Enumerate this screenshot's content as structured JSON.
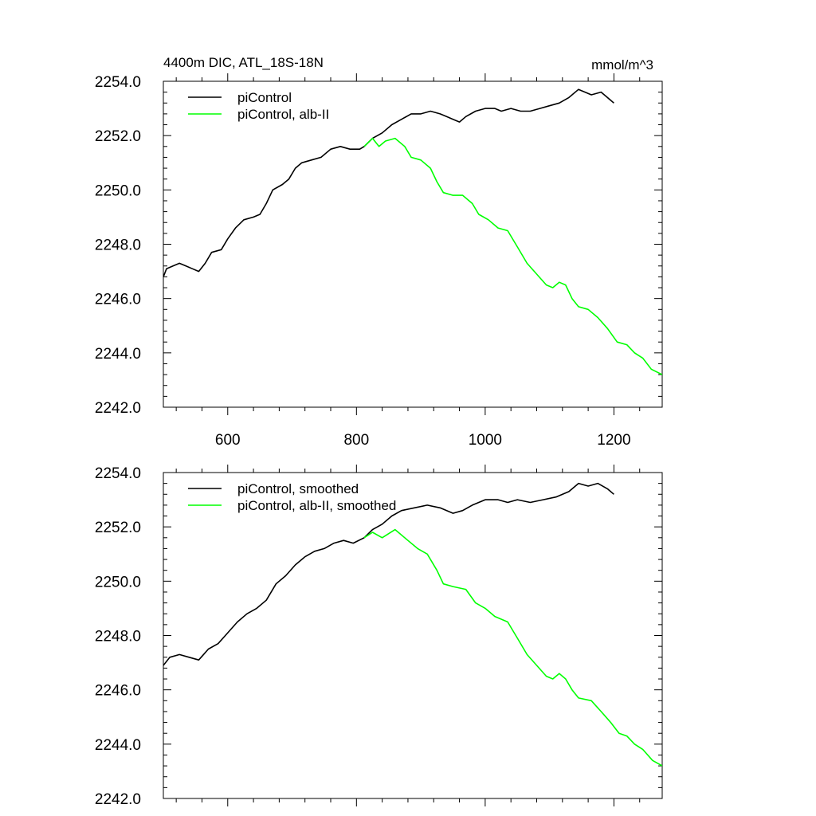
{
  "chart_data": [
    {
      "type": "line",
      "title": "4400m DIC, ATL_18S-18N",
      "units_label": "mmol/m^3",
      "xlim": [
        500,
        1275
      ],
      "ylim": [
        2242.0,
        2254.0
      ],
      "x_ticks": [
        600,
        800,
        1000,
        1200
      ],
      "x_tick_labels": [
        "600",
        "800",
        "1000",
        "1200"
      ],
      "y_ticks": [
        2242.0,
        2244.0,
        2246.0,
        2248.0,
        2250.0,
        2252.0,
        2254.0
      ],
      "y_tick_labels": [
        "2242.0",
        "2244.0",
        "2246.0",
        "2248.0",
        "2250.0",
        "2252.0",
        "2254.0"
      ],
      "legend_position": "top-left",
      "series": [
        {
          "name": "piControl",
          "color": "#000000",
          "points": [
            [
              500,
              2246.8
            ],
            [
              505,
              2247.1
            ],
            [
              515,
              2247.2
            ],
            [
              525,
              2247.3
            ],
            [
              535,
              2247.2
            ],
            [
              545,
              2247.1
            ],
            [
              555,
              2247.0
            ],
            [
              565,
              2247.3
            ],
            [
              575,
              2247.7
            ],
            [
              590,
              2247.8
            ],
            [
              600,
              2248.2
            ],
            [
              612,
              2248.6
            ],
            [
              625,
              2248.9
            ],
            [
              640,
              2249.0
            ],
            [
              650,
              2249.1
            ],
            [
              660,
              2249.5
            ],
            [
              670,
              2250.0
            ],
            [
              685,
              2250.2
            ],
            [
              695,
              2250.4
            ],
            [
              705,
              2250.8
            ],
            [
              715,
              2251.0
            ],
            [
              730,
              2251.1
            ],
            [
              745,
              2251.2
            ],
            [
              760,
              2251.5
            ],
            [
              775,
              2251.6
            ],
            [
              790,
              2251.5
            ],
            [
              805,
              2251.5
            ],
            [
              812,
              2251.6
            ],
            [
              825,
              2251.9
            ],
            [
              840,
              2252.1
            ],
            [
              855,
              2252.4
            ],
            [
              870,
              2252.6
            ],
            [
              885,
              2252.8
            ],
            [
              900,
              2252.8
            ],
            [
              915,
              2252.9
            ],
            [
              930,
              2252.8
            ],
            [
              940,
              2252.7
            ],
            [
              950,
              2252.6
            ],
            [
              960,
              2252.5
            ],
            [
              970,
              2252.7
            ],
            [
              985,
              2252.9
            ],
            [
              1000,
              2253.0
            ],
            [
              1015,
              2253.0
            ],
            [
              1025,
              2252.9
            ],
            [
              1040,
              2253.0
            ],
            [
              1055,
              2252.9
            ],
            [
              1070,
              2252.9
            ],
            [
              1085,
              2253.0
            ],
            [
              1100,
              2253.1
            ],
            [
              1115,
              2253.2
            ],
            [
              1130,
              2253.4
            ],
            [
              1145,
              2253.7
            ],
            [
              1155,
              2253.6
            ],
            [
              1165,
              2253.5
            ],
            [
              1180,
              2253.6
            ],
            [
              1190,
              2253.4
            ],
            [
              1200,
              2253.2
            ]
          ]
        },
        {
          "name": "piControl, alb-II",
          "color": "#00ff00",
          "points": [
            [
              812,
              2251.6
            ],
            [
              825,
              2251.9
            ],
            [
              835,
              2251.6
            ],
            [
              845,
              2251.8
            ],
            [
              860,
              2251.9
            ],
            [
              875,
              2251.6
            ],
            [
              885,
              2251.2
            ],
            [
              900,
              2251.1
            ],
            [
              915,
              2250.8
            ],
            [
              925,
              2250.3
            ],
            [
              935,
              2249.9
            ],
            [
              950,
              2249.8
            ],
            [
              965,
              2249.8
            ],
            [
              980,
              2249.5
            ],
            [
              990,
              2249.1
            ],
            [
              1005,
              2248.9
            ],
            [
              1020,
              2248.6
            ],
            [
              1035,
              2248.5
            ],
            [
              1050,
              2247.9
            ],
            [
              1065,
              2247.3
            ],
            [
              1080,
              2246.9
            ],
            [
              1095,
              2246.5
            ],
            [
              1105,
              2246.4
            ],
            [
              1115,
              2246.6
            ],
            [
              1125,
              2246.5
            ],
            [
              1135,
              2246.0
            ],
            [
              1145,
              2245.7
            ],
            [
              1160,
              2245.6
            ],
            [
              1175,
              2245.3
            ],
            [
              1190,
              2244.9
            ],
            [
              1205,
              2244.4
            ],
            [
              1220,
              2244.3
            ],
            [
              1232,
              2244.0
            ],
            [
              1245,
              2243.8
            ],
            [
              1258,
              2243.4
            ],
            [
              1275,
              2243.2
            ]
          ]
        }
      ]
    },
    {
      "type": "line",
      "xlim": [
        500,
        1275
      ],
      "ylim": [
        2242.0,
        2254.0
      ],
      "x_ticks": [
        600,
        800,
        1000,
        1200
      ],
      "y_ticks": [
        2242.0,
        2244.0,
        2246.0,
        2248.0,
        2250.0,
        2252.0,
        2254.0
      ],
      "y_tick_labels": [
        "2242.0",
        "2244.0",
        "2246.0",
        "2248.0",
        "2250.0",
        "2252.0",
        "2254.0"
      ],
      "legend_position": "top-left",
      "series": [
        {
          "name": "piControl, smoothed",
          "color": "#000000",
          "points": [
            [
              500,
              2246.9
            ],
            [
              510,
              2247.2
            ],
            [
              525,
              2247.3
            ],
            [
              540,
              2247.2
            ],
            [
              555,
              2247.1
            ],
            [
              570,
              2247.5
            ],
            [
              585,
              2247.7
            ],
            [
              600,
              2248.1
            ],
            [
              615,
              2248.5
            ],
            [
              630,
              2248.8
            ],
            [
              645,
              2249.0
            ],
            [
              660,
              2249.3
            ],
            [
              675,
              2249.9
            ],
            [
              690,
              2250.2
            ],
            [
              705,
              2250.6
            ],
            [
              720,
              2250.9
            ],
            [
              735,
              2251.1
            ],
            [
              750,
              2251.2
            ],
            [
              765,
              2251.4
            ],
            [
              780,
              2251.5
            ],
            [
              795,
              2251.4
            ],
            [
              812,
              2251.6
            ],
            [
              825,
              2251.9
            ],
            [
              840,
              2252.1
            ],
            [
              855,
              2252.4
            ],
            [
              870,
              2252.6
            ],
            [
              890,
              2252.7
            ],
            [
              910,
              2252.8
            ],
            [
              930,
              2252.7
            ],
            [
              950,
              2252.5
            ],
            [
              965,
              2252.6
            ],
            [
              980,
              2252.8
            ],
            [
              1000,
              2253.0
            ],
            [
              1020,
              2253.0
            ],
            [
              1035,
              2252.9
            ],
            [
              1050,
              2253.0
            ],
            [
              1070,
              2252.9
            ],
            [
              1090,
              2253.0
            ],
            [
              1110,
              2253.1
            ],
            [
              1130,
              2253.3
            ],
            [
              1145,
              2253.6
            ],
            [
              1160,
              2253.5
            ],
            [
              1175,
              2253.6
            ],
            [
              1190,
              2253.4
            ],
            [
              1200,
              2253.2
            ]
          ]
        },
        {
          "name": "piControl, alb-II, smoothed",
          "color": "#00ff00",
          "points": [
            [
              812,
              2251.6
            ],
            [
              825,
              2251.8
            ],
            [
              840,
              2251.6
            ],
            [
              860,
              2251.9
            ],
            [
              880,
              2251.5
            ],
            [
              895,
              2251.2
            ],
            [
              910,
              2251.0
            ],
            [
              925,
              2250.4
            ],
            [
              935,
              2249.9
            ],
            [
              950,
              2249.8
            ],
            [
              970,
              2249.7
            ],
            [
              985,
              2249.2
            ],
            [
              1000,
              2249.0
            ],
            [
              1015,
              2248.7
            ],
            [
              1035,
              2248.5
            ],
            [
              1050,
              2247.9
            ],
            [
              1065,
              2247.3
            ],
            [
              1080,
              2246.9
            ],
            [
              1095,
              2246.5
            ],
            [
              1105,
              2246.4
            ],
            [
              1115,
              2246.6
            ],
            [
              1125,
              2246.4
            ],
            [
              1135,
              2246.0
            ],
            [
              1145,
              2245.7
            ],
            [
              1165,
              2245.6
            ],
            [
              1180,
              2245.2
            ],
            [
              1195,
              2244.8
            ],
            [
              1208,
              2244.4
            ],
            [
              1220,
              2244.3
            ],
            [
              1232,
              2244.0
            ],
            [
              1245,
              2243.8
            ],
            [
              1260,
              2243.4
            ],
            [
              1275,
              2243.2
            ]
          ]
        }
      ]
    }
  ]
}
